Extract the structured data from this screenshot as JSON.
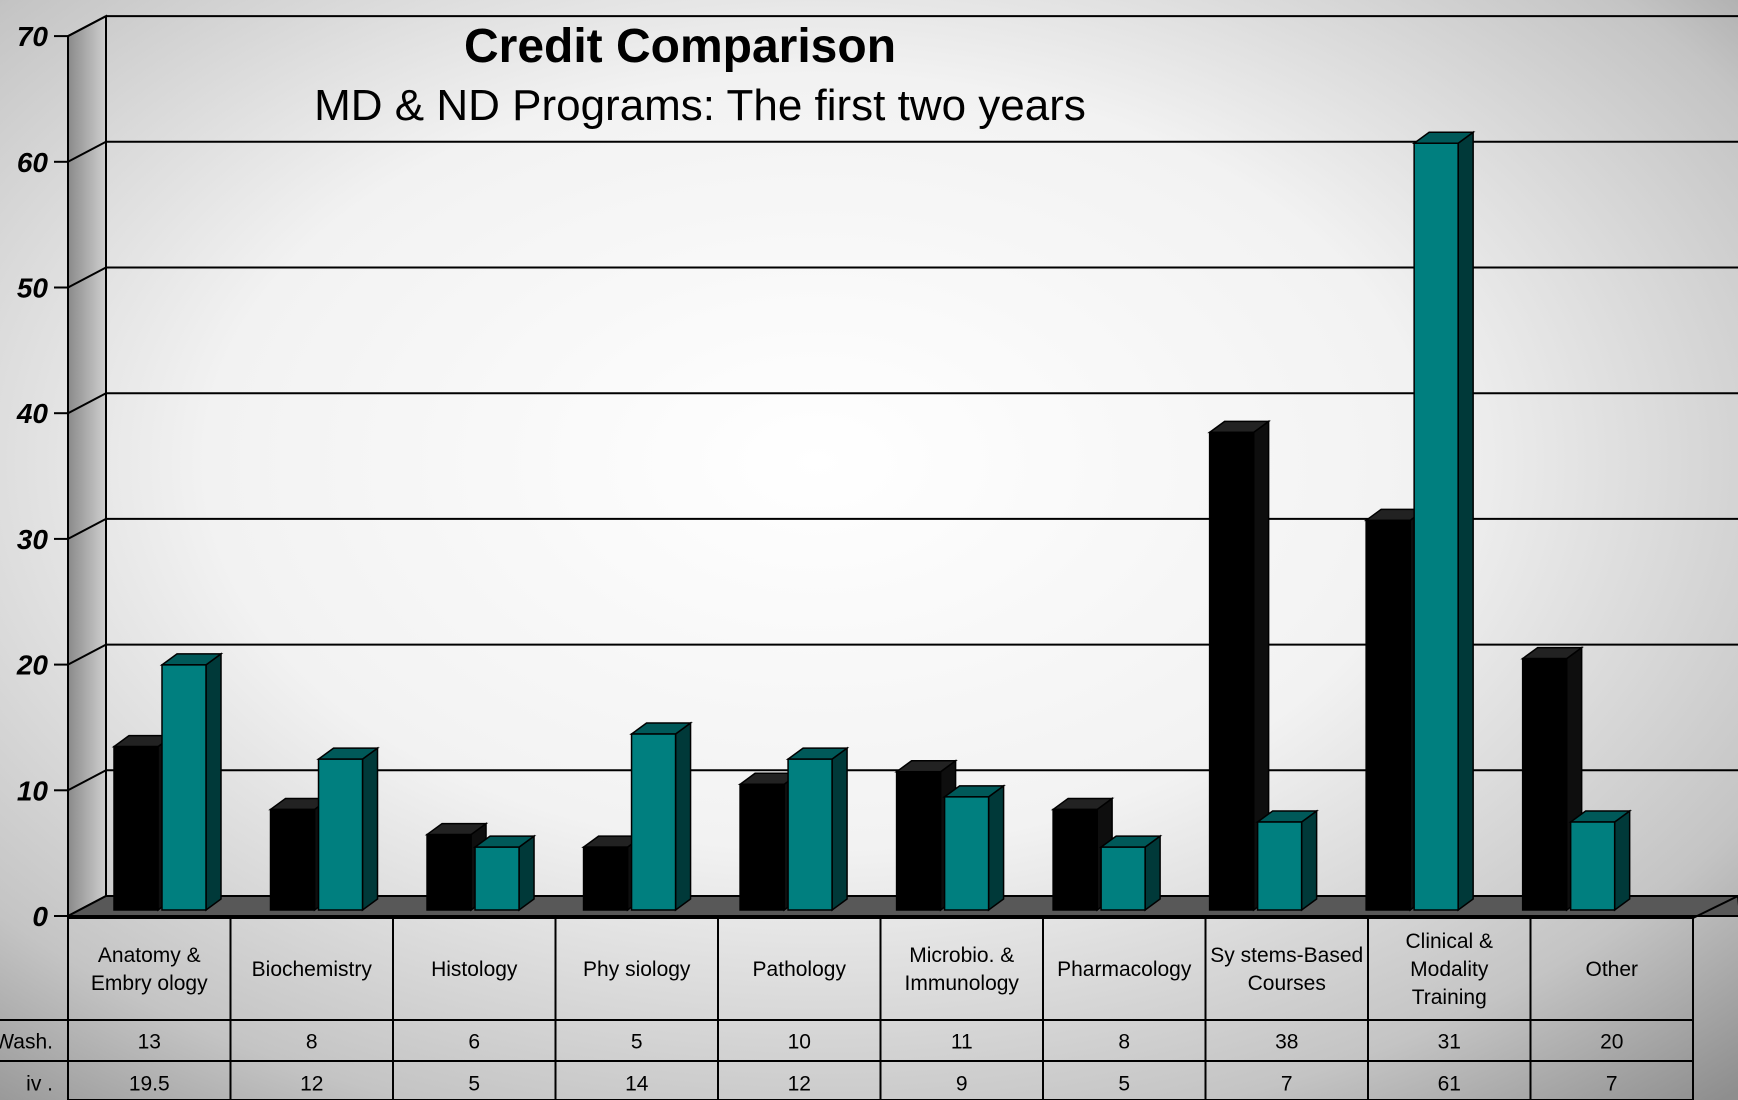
{
  "chart_data": {
    "type": "bar",
    "title": "Credit Comparison",
    "subtitle": "MD & ND Programs: The first two years",
    "categories": [
      "Anatomy & Embryology",
      "Biochemistry",
      "Histology",
      "Physiology",
      "Pathology",
      "Microbio. & Immunology",
      "Pharmacology",
      "Systems-Based Courses",
      "Clinical & Modality Training",
      "Other"
    ],
    "category_lines": [
      [
        "Anatomy  &",
        "Embry ology"
      ],
      [
        "Biochemistry"
      ],
      [
        "Histology"
      ],
      [
        "Phy siology"
      ],
      [
        "Pathology"
      ],
      [
        "Microbio.  &",
        "Immunology"
      ],
      [
        "Pharmacology"
      ],
      [
        "Sy stems-Based",
        "Courses"
      ],
      [
        "Clinical &",
        "Modality",
        "Training"
      ],
      [
        "Other"
      ]
    ],
    "series": [
      {
        "name": "Wash.",
        "color": "#000000",
        "values": [
          13,
          8,
          6,
          5,
          10,
          11,
          8,
          38,
          31,
          20
        ]
      },
      {
        "name": "iv .",
        "color": "#007f7f",
        "values": [
          19.5,
          12,
          5,
          14,
          12,
          9,
          5,
          7,
          61,
          7
        ]
      }
    ],
    "ylim": [
      0,
      70
    ],
    "yticks": [
      "0",
      "10",
      "20",
      "30",
      "40",
      "50",
      "60",
      "70"
    ],
    "grid": true,
    "legend": "data table below chart"
  }
}
